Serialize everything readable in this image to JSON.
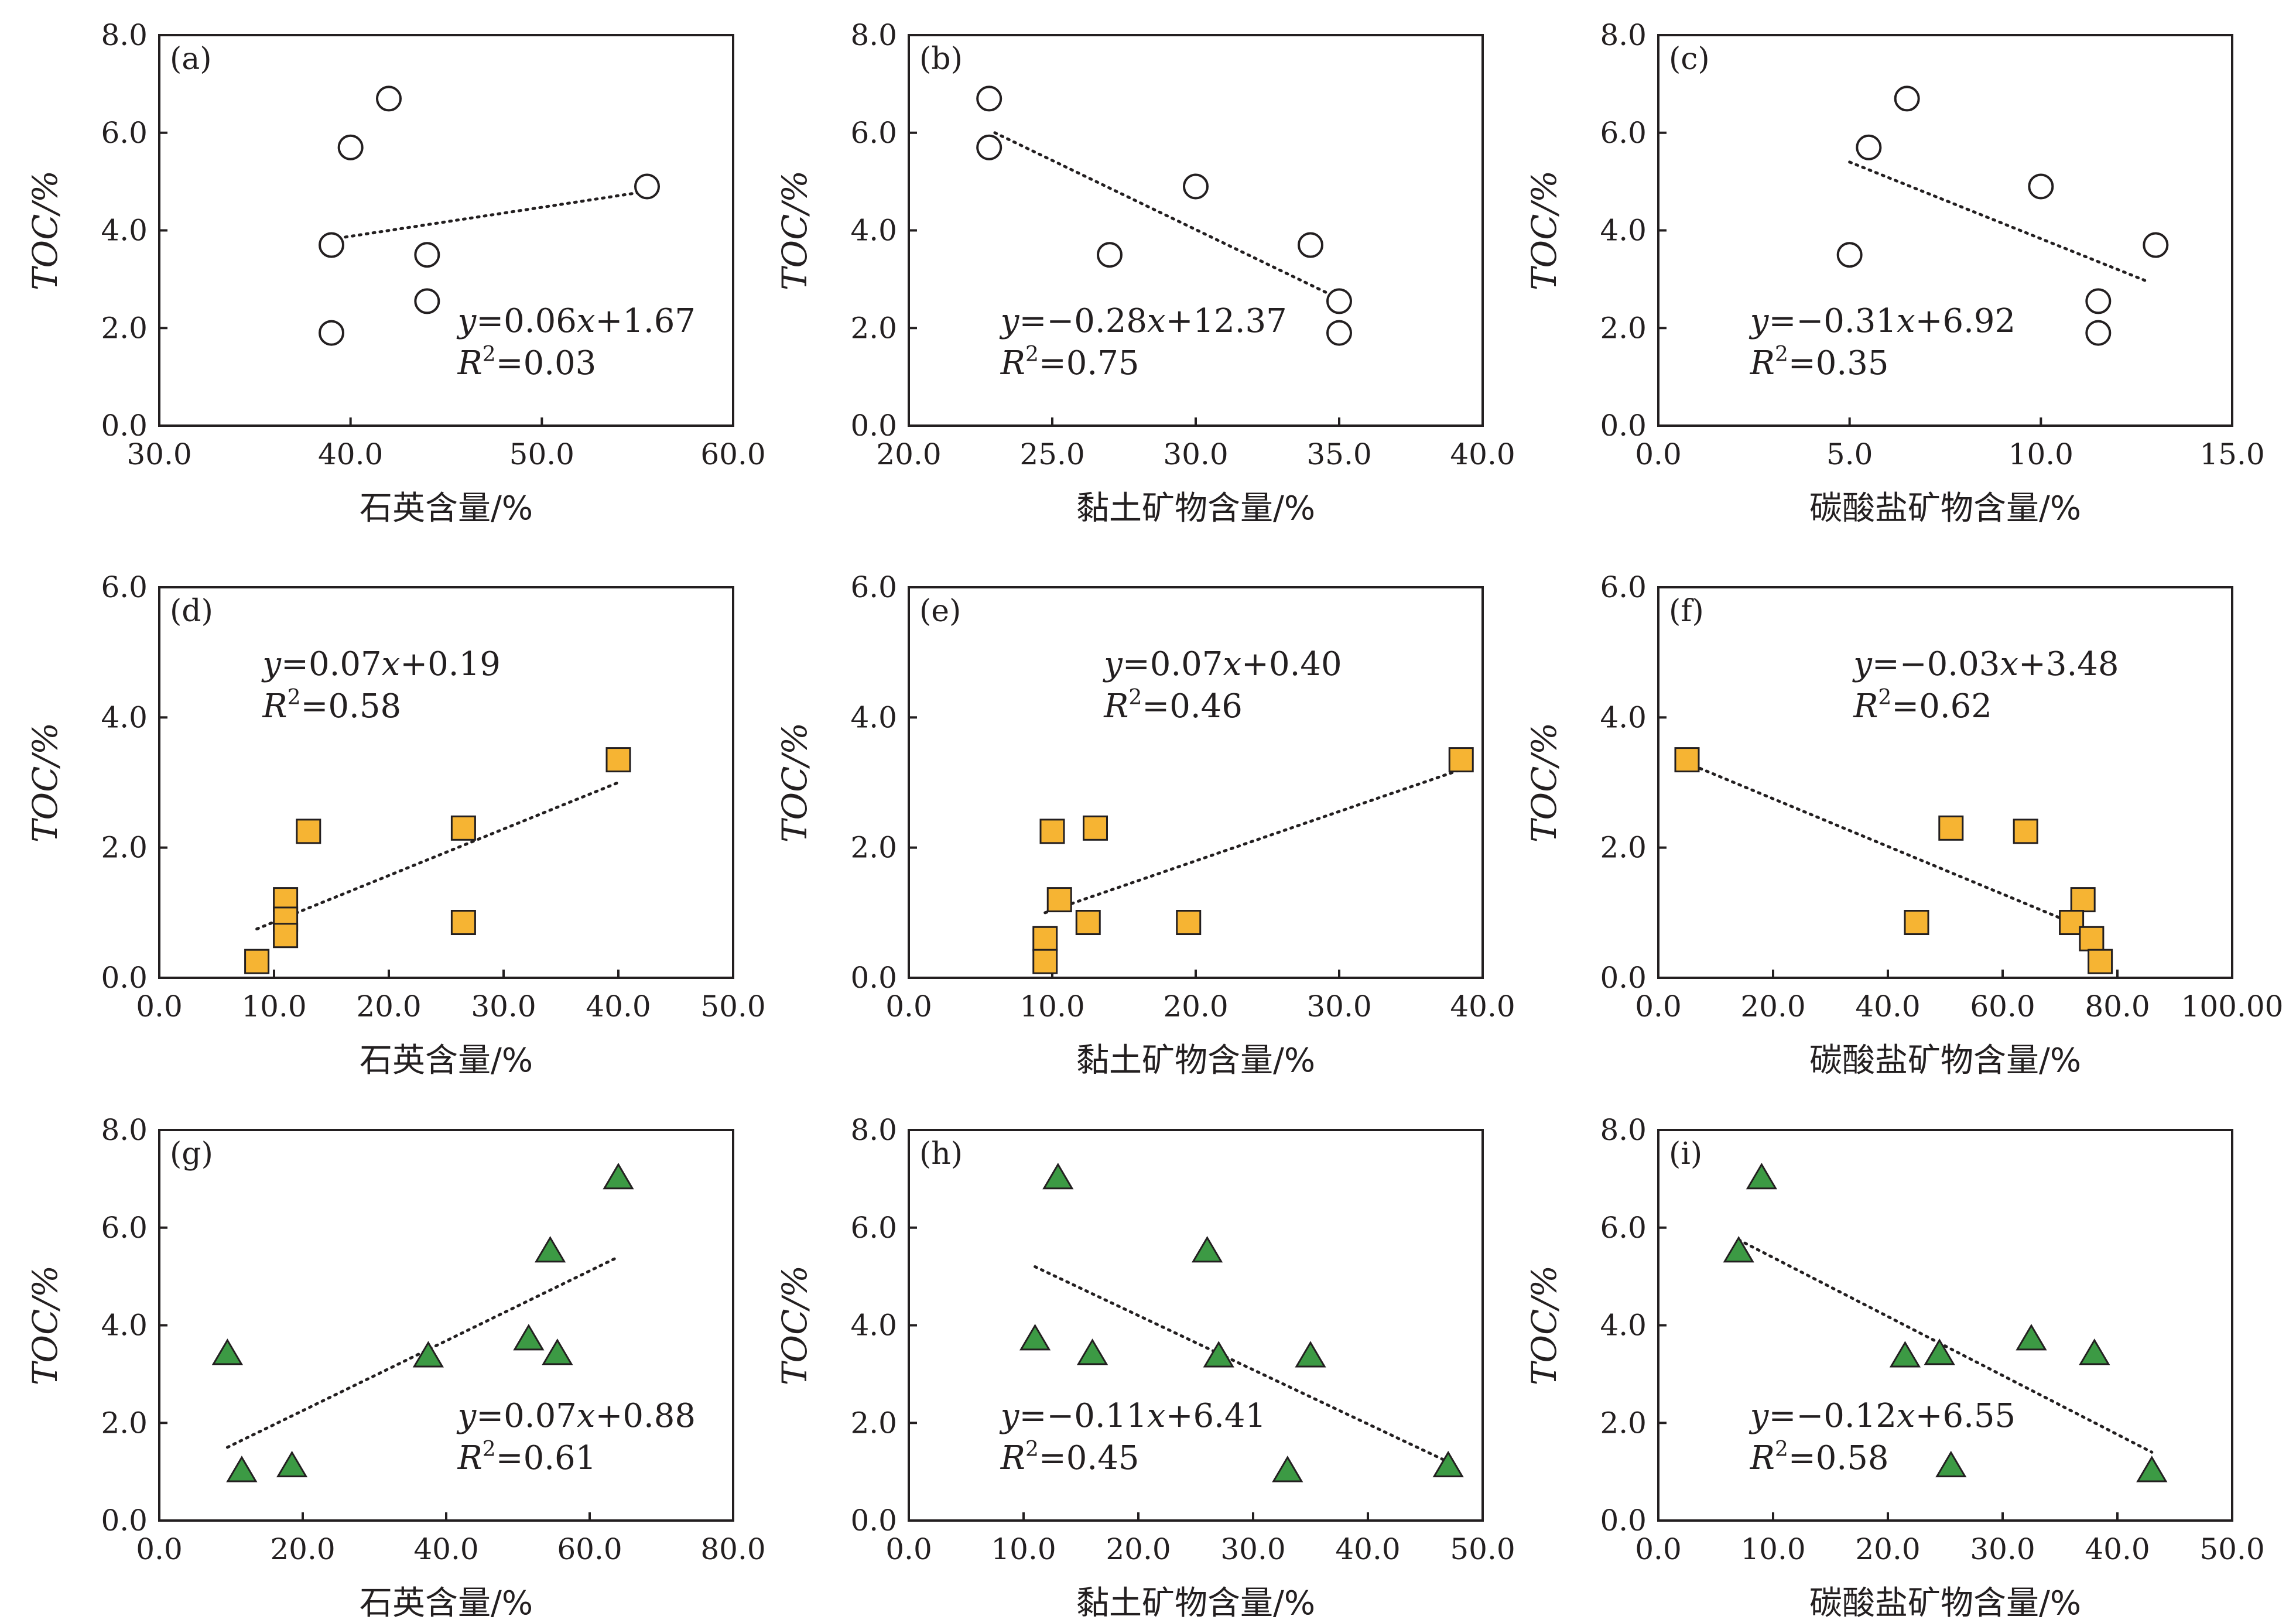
{
  "colors": {
    "circle_fill": "#ffffff",
    "square_fill": "#f6b433",
    "triangle_fill": "#3c9a44",
    "ink": "#231f20"
  },
  "chart_data": [
    {
      "label": "(a)",
      "type": "scatter",
      "marker": "circle",
      "xlabel": "石英含量/%",
      "ylabel": "TOC/%",
      "xlim": [
        30,
        60
      ],
      "ylim": [
        0,
        8
      ],
      "xticks": [
        "30.0",
        "40.0",
        "50.0",
        "60.0"
      ],
      "yticks": [
        "0.0",
        "2.0",
        "4.0",
        "6.0",
        "8.0"
      ],
      "points": [
        [
          42.0,
          6.7
        ],
        [
          40.0,
          5.7
        ],
        [
          55.5,
          4.9
        ],
        [
          39.0,
          3.7
        ],
        [
          44.0,
          3.5
        ],
        [
          44.0,
          2.55
        ],
        [
          39.0,
          1.9
        ]
      ],
      "trend": [
        [
          39.0,
          3.82
        ],
        [
          55.5,
          4.8
        ]
      ],
      "equation": {
        "y_var": "y",
        "expr_pre": "=0.06",
        "x_var": "x",
        "expr_post": "+1.67",
        "r_var": "R",
        "sup": "2",
        "r_val": "=0.03"
      },
      "eq_pos": "bottom-right"
    },
    {
      "label": "(b)",
      "type": "scatter",
      "marker": "circle",
      "xlabel": "黏土矿物含量/%",
      "ylabel": "TOC/%",
      "xlim": [
        20,
        40
      ],
      "ylim": [
        0,
        8
      ],
      "xticks": [
        "20.0",
        "25.0",
        "30.0",
        "35.0",
        "40.0"
      ],
      "yticks": [
        "0.0",
        "2.0",
        "4.0",
        "6.0",
        "8.0"
      ],
      "points": [
        [
          22.8,
          6.7
        ],
        [
          22.8,
          5.7
        ],
        [
          30.0,
          4.9
        ],
        [
          27.0,
          3.5
        ],
        [
          34.0,
          3.7
        ],
        [
          35.0,
          2.55
        ],
        [
          35.0,
          1.9
        ]
      ],
      "trend": [
        [
          23.0,
          6.0
        ],
        [
          35.0,
          2.6
        ]
      ],
      "equation": {
        "y_var": "y",
        "expr_pre": "=−0.28",
        "x_var": "x",
        "expr_post": "+12.37",
        "r_var": "R",
        "sup": "2",
        "r_val": "=0.75"
      },
      "eq_pos": "bottom-left"
    },
    {
      "label": "(c)",
      "type": "scatter",
      "marker": "circle",
      "xlabel": "碳酸盐矿物含量/%",
      "ylabel": "TOC/%",
      "xlim": [
        0,
        15
      ],
      "ylim": [
        0,
        8
      ],
      "xticks": [
        "0.0",
        "5.0",
        "10.0",
        "15.0"
      ],
      "yticks": [
        "0.0",
        "2.0",
        "4.0",
        "6.0",
        "8.0"
      ],
      "points": [
        [
          6.5,
          6.7
        ],
        [
          5.5,
          5.7
        ],
        [
          10.0,
          4.9
        ],
        [
          5.0,
          3.5
        ],
        [
          13.0,
          3.7
        ],
        [
          11.5,
          2.55
        ],
        [
          11.5,
          1.9
        ]
      ],
      "trend": [
        [
          5.0,
          5.4
        ],
        [
          12.8,
          2.95
        ]
      ],
      "equation": {
        "y_var": "y",
        "expr_pre": "=−0.31",
        "x_var": "x",
        "expr_post": "+6.92",
        "r_var": "R",
        "sup": "2",
        "r_val": "=0.35"
      },
      "eq_pos": "bottom-left"
    },
    {
      "label": "(d)",
      "type": "scatter",
      "marker": "square",
      "xlabel": "石英含量/%",
      "ylabel": "TOC/%",
      "xlim": [
        0,
        50
      ],
      "ylim": [
        0,
        6
      ],
      "xticks": [
        "0.0",
        "10.0",
        "20.0",
        "30.0",
        "40.0",
        "50.0"
      ],
      "yticks": [
        "0.0",
        "2.0",
        "4.0",
        "6.0"
      ],
      "points": [
        [
          40.0,
          3.35
        ],
        [
          13.0,
          2.25
        ],
        [
          26.5,
          2.3
        ],
        [
          11.0,
          1.2
        ],
        [
          11.0,
          0.9
        ],
        [
          11.0,
          0.65
        ],
        [
          26.5,
          0.85
        ],
        [
          8.5,
          0.25
        ]
      ],
      "trend": [
        [
          8.5,
          0.75
        ],
        [
          40.0,
          3.0
        ]
      ],
      "equation": {
        "y_var": "y",
        "expr_pre": "=0.07",
        "x_var": "x",
        "expr_post": "+0.19",
        "r_var": "R",
        "sup": "2",
        "r_val": "=0.58"
      },
      "eq_pos": "top-left"
    },
    {
      "label": "(e)",
      "type": "scatter",
      "marker": "square",
      "xlabel": "黏土矿物含量/%",
      "ylabel": "TOC/%",
      "xlim": [
        0,
        40
      ],
      "ylim": [
        0,
        6
      ],
      "xticks": [
        "0.0",
        "10.0",
        "20.0",
        "30.0",
        "40.0"
      ],
      "yticks": [
        "0.0",
        "2.0",
        "4.0",
        "6.0"
      ],
      "points": [
        [
          38.5,
          3.35
        ],
        [
          10.0,
          2.25
        ],
        [
          13.0,
          2.3
        ],
        [
          10.5,
          1.2
        ],
        [
          12.5,
          0.85
        ],
        [
          19.5,
          0.85
        ],
        [
          9.5,
          0.6
        ],
        [
          9.5,
          0.25
        ]
      ],
      "trend": [
        [
          9.5,
          1.0
        ],
        [
          38.5,
          3.2
        ]
      ],
      "equation": {
        "y_var": "y",
        "expr_pre": "=0.07",
        "x_var": "x",
        "expr_post": "+0.40",
        "r_var": "R",
        "sup": "2",
        "r_val": "=0.46"
      },
      "eq_pos": "top-mid"
    },
    {
      "label": "(f)",
      "type": "scatter",
      "marker": "square",
      "xlabel": "碳酸盐矿物含量/%",
      "ylabel": "TOC/%",
      "xlim": [
        0,
        100
      ],
      "ylim": [
        0,
        6
      ],
      "xticks": [
        "0.0",
        "20.0",
        "40.0",
        "60.0",
        "80.0",
        "100.00"
      ],
      "yticks": [
        "0.0",
        "2.0",
        "4.0",
        "6.0"
      ],
      "points": [
        [
          5.0,
          3.35
        ],
        [
          51.0,
          2.3
        ],
        [
          64.0,
          2.25
        ],
        [
          74.0,
          1.2
        ],
        [
          72.0,
          0.85
        ],
        [
          45.0,
          0.85
        ],
        [
          75.5,
          0.6
        ],
        [
          77.0,
          0.25
        ]
      ],
      "trend": [
        [
          5.0,
          3.3
        ],
        [
          76.0,
          0.7
        ]
      ],
      "equation": {
        "y_var": "y",
        "expr_pre": "=−0.03",
        "x_var": "x",
        "expr_post": "+3.48",
        "r_var": "R",
        "sup": "2",
        "r_val": "=0.62"
      },
      "eq_pos": "top-mid"
    },
    {
      "label": "(g)",
      "type": "scatter",
      "marker": "triangle",
      "xlabel": "石英含量/%",
      "ylabel": "TOC/%",
      "xlim": [
        0,
        80
      ],
      "ylim": [
        0,
        8
      ],
      "xticks": [
        "0.0",
        "20.0",
        "40.0",
        "60.0",
        "80.0"
      ],
      "yticks": [
        "0.0",
        "2.0",
        "4.0",
        "6.0",
        "8.0"
      ],
      "points": [
        [
          64.0,
          7.0
        ],
        [
          54.5,
          5.5
        ],
        [
          51.5,
          3.7
        ],
        [
          55.5,
          3.4
        ],
        [
          37.5,
          3.35
        ],
        [
          9.5,
          3.4
        ],
        [
          11.5,
          1.0
        ],
        [
          18.5,
          1.1
        ]
      ],
      "trend": [
        [
          9.5,
          1.5
        ],
        [
          64.0,
          5.4
        ]
      ],
      "equation": {
        "y_var": "y",
        "expr_pre": "=0.07",
        "x_var": "x",
        "expr_post": "+0.88",
        "r_var": "R",
        "sup": "2",
        "r_val": "=0.61"
      },
      "eq_pos": "bottom-right"
    },
    {
      "label": "(h)",
      "type": "scatter",
      "marker": "triangle",
      "xlabel": "黏土矿物含量/%",
      "ylabel": "TOC/%",
      "xlim": [
        0,
        50
      ],
      "ylim": [
        0,
        8
      ],
      "xticks": [
        "0.0",
        "10.0",
        "20.0",
        "30.0",
        "40.0",
        "50.0"
      ],
      "yticks": [
        "0.0",
        "2.0",
        "4.0",
        "6.0",
        "8.0"
      ],
      "points": [
        [
          13.0,
          7.0
        ],
        [
          26.0,
          5.5
        ],
        [
          11.0,
          3.7
        ],
        [
          16.0,
          3.4
        ],
        [
          27.0,
          3.35
        ],
        [
          35.0,
          3.35
        ],
        [
          33.0,
          1.0
        ],
        [
          47.0,
          1.1
        ]
      ],
      "trend": [
        [
          11.0,
          5.2
        ],
        [
          47.0,
          1.2
        ]
      ],
      "equation": {
        "y_var": "y",
        "expr_pre": "=−0.11",
        "x_var": "x",
        "expr_post": "+6.41",
        "r_var": "R",
        "sup": "2",
        "r_val": "=0.45"
      },
      "eq_pos": "bottom-left"
    },
    {
      "label": "(i)",
      "type": "scatter",
      "marker": "triangle",
      "xlabel": "碳酸盐矿物含量/%",
      "ylabel": "TOC/%",
      "xlim": [
        0,
        50
      ],
      "ylim": [
        0,
        8
      ],
      "xticks": [
        "0.0",
        "10.0",
        "20.0",
        "30.0",
        "40.0",
        "50.0"
      ],
      "yticks": [
        "0.0",
        "2.0",
        "4.0",
        "6.0",
        "8.0"
      ],
      "points": [
        [
          9.0,
          7.0
        ],
        [
          7.0,
          5.5
        ],
        [
          32.5,
          3.7
        ],
        [
          21.5,
          3.35
        ],
        [
          24.5,
          3.4
        ],
        [
          38.0,
          3.4
        ],
        [
          25.5,
          1.1
        ],
        [
          43.0,
          1.0
        ]
      ],
      "trend": [
        [
          7.0,
          5.75
        ],
        [
          43.0,
          1.4
        ]
      ],
      "equation": {
        "y_var": "y",
        "expr_pre": "=−0.12",
        "x_var": "x",
        "expr_post": "+6.55",
        "r_var": "R",
        "sup": "2",
        "r_val": "=0.58"
      },
      "eq_pos": "bottom-left"
    }
  ]
}
